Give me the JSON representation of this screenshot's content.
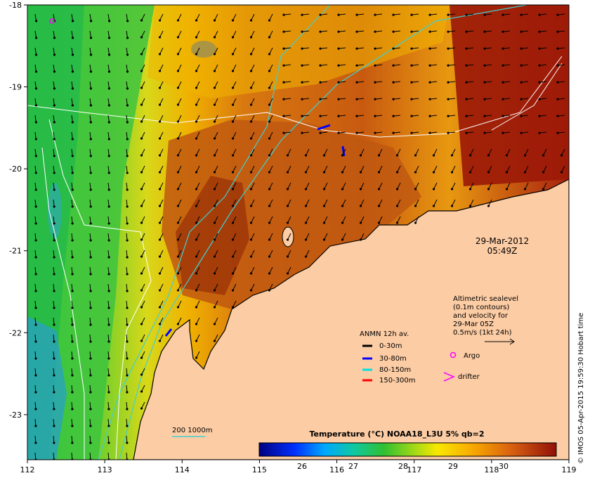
{
  "map": {
    "longitude_ticks": [
      "112",
      "113",
      "114",
      "115",
      "116",
      "117",
      "118",
      "119"
    ],
    "latitude_ticks": [
      "-18",
      "-19",
      "-20",
      "-21",
      "-22",
      "-23"
    ],
    "longitude_range": [
      112,
      119
    ],
    "latitude_range": [
      -23.55,
      -18
    ],
    "date": "29-Mar-2012",
    "time": "05:49Z",
    "altimetry_note": [
      "Altimetric sealevel",
      "(0.1m contours)",
      "and velocity for",
      "29-Mar 05Z",
      "0.5m/s (1kt 24h)"
    ],
    "mooring_legend": {
      "title": "ANMN 12h av.",
      "items": [
        {
          "label": "0-30m",
          "color": "#000000"
        },
        {
          "label": "30-80m",
          "color": "#0000ff"
        },
        {
          "label": "80-150m",
          "color": "#00e0e0"
        },
        {
          "label": "150-300m",
          "color": "#ff0000"
        }
      ]
    },
    "markers": [
      {
        "label": "Argo",
        "symbol": "circle",
        "color": "#ff00ff"
      },
      {
        "label": "drifter",
        "symbol": "chevron",
        "color": "#ff00ff"
      }
    ],
    "isobath_label": "200  1000m",
    "colorbar": {
      "title": "Temperature (°C) NOAA18_L3U 5% qb=2",
      "ticks": [
        "26",
        "27",
        "28",
        "29",
        "30"
      ]
    },
    "credit": "© IMOS 05-Apr-2015 19:59:30 Hobart time",
    "colors": {
      "land": "#fccca4",
      "hot": "#9c1a08",
      "warm": "#c85a10",
      "mid": "#f0a800",
      "cool_green": "#3cc83c",
      "cold_blue": "#1a5ad2",
      "isobath": "#40d0d0"
    }
  }
}
